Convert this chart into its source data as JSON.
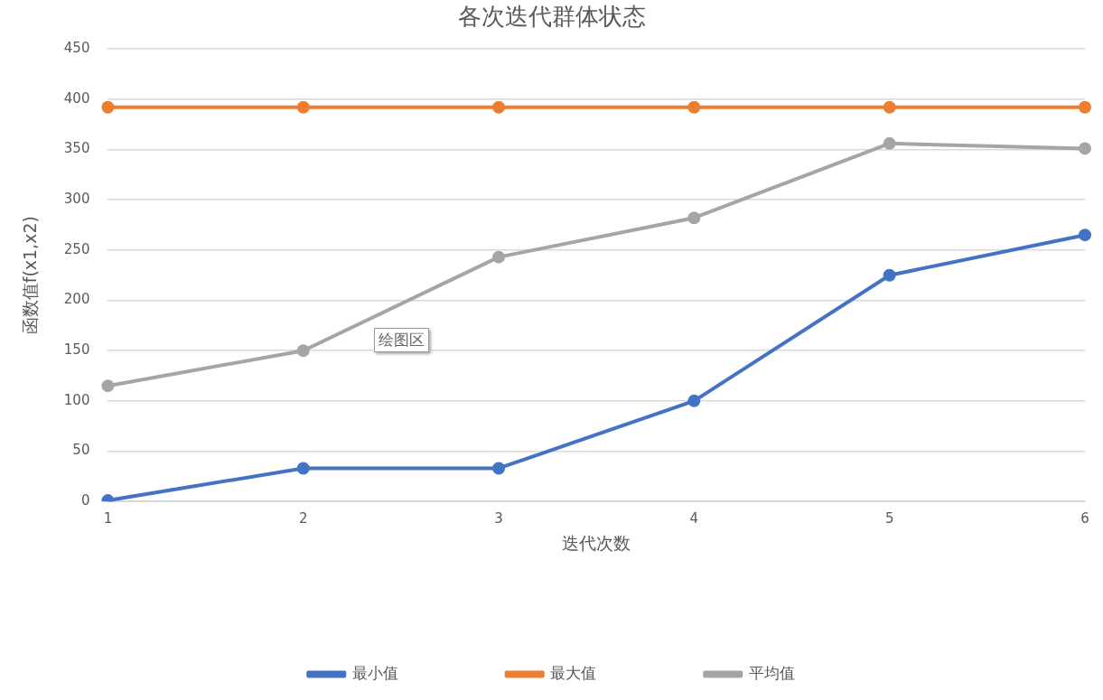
{
  "chart_data": {
    "type": "line",
    "title": "各次迭代群体状态",
    "xlabel": "迭代次数",
    "ylabel": "函数值f(x1,x2)",
    "categories": [
      "1",
      "2",
      "3",
      "4",
      "5",
      "6"
    ],
    "series": [
      {
        "name": "最小值",
        "color": "#4472c4",
        "values": [
          1,
          33,
          33,
          100,
          225,
          265
        ]
      },
      {
        "name": "最大值",
        "color": "#ed7d31",
        "values": [
          392,
          392,
          392,
          392,
          392,
          392
        ]
      },
      {
        "name": "平均值",
        "color": "#a5a5a5",
        "values": [
          115,
          150,
          243,
          282,
          356,
          351
        ]
      }
    ],
    "ylim": [
      0,
      450
    ],
    "yticks": [
      0,
      50,
      100,
      150,
      200,
      250,
      300,
      350,
      400,
      450
    ],
    "grid": "y",
    "legend": "bottom",
    "marker": "circle",
    "line_style": "solid",
    "annotations": [
      "绘图区"
    ]
  }
}
